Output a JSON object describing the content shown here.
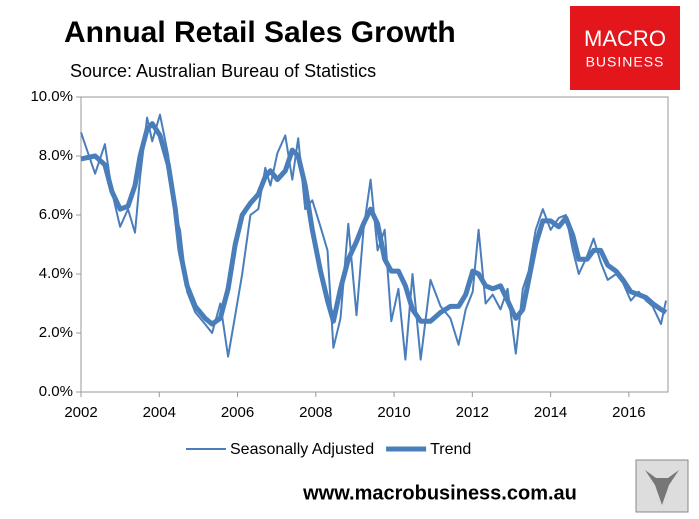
{
  "chart_data": {
    "type": "line",
    "title": "Annual Retail Sales Growth",
    "subtitle": "Source: Australian Bureau of Statistics",
    "logo": [
      "MACRO",
      "BUSINESS"
    ],
    "footer": "www.macrobusiness.com.au",
    "x": [
      2002.0,
      2002.36,
      2002.61,
      2002.79,
      2003.0,
      2003.2,
      2003.38,
      2003.51,
      2003.69,
      2003.82,
      2004.02,
      2004.23,
      2004.41,
      2004.53,
      2004.71,
      2004.92,
      2005.17,
      2005.35,
      2005.56,
      2005.76,
      2005.94,
      2006.12,
      2006.33,
      2006.53,
      2006.71,
      2006.84,
      2007.02,
      2007.22,
      2007.4,
      2007.55,
      2007.73,
      2007.91,
      2008.12,
      2008.3,
      2008.45,
      2008.63,
      2008.83,
      2009.04,
      2009.22,
      2009.4,
      2009.58,
      2009.76,
      2009.93,
      2010.11,
      2010.29,
      2010.47,
      2010.68,
      2010.93,
      2011.19,
      2011.44,
      2011.65,
      2011.83,
      2012.01,
      2012.16,
      2012.34,
      2012.52,
      2012.72,
      2012.9,
      2013.11,
      2013.29,
      2013.44,
      2013.62,
      2013.8,
      2014.0,
      2014.21,
      2014.39,
      2014.57,
      2014.72,
      2014.93,
      2015.1,
      2015.28,
      2015.46,
      2015.67,
      2015.85,
      2016.05,
      2016.25,
      2016.44,
      2016.61,
      2016.82,
      2016.95
    ],
    "series": [
      {
        "name": "Seasonally Adjusted",
        "color": "#4a7ebb",
        "width": 2,
        "values": [
          8.8,
          7.4,
          8.4,
          6.8,
          5.6,
          6.2,
          5.4,
          7.3,
          9.3,
          8.5,
          9.4,
          8.0,
          6.0,
          5.5,
          3.4,
          2.7,
          2.3,
          2.0,
          3.0,
          1.2,
          2.6,
          4.0,
          6.0,
          6.2,
          7.6,
          7.0,
          8.1,
          8.7,
          7.2,
          8.6,
          6.2,
          6.5,
          5.6,
          4.8,
          1.5,
          2.5,
          5.7,
          2.6,
          5.5,
          7.2,
          4.8,
          5.5,
          2.4,
          3.5,
          1.1,
          4.0,
          1.1,
          3.8,
          2.9,
          2.5,
          1.6,
          2.8,
          3.4,
          5.5,
          3.0,
          3.3,
          2.8,
          3.5,
          1.3,
          3.5,
          4.1,
          5.5,
          6.2,
          5.5,
          5.9,
          6.0,
          4.8,
          4.0,
          4.6,
          5.2,
          4.4,
          3.8,
          4.0,
          3.7,
          3.1,
          3.4,
          3.1,
          2.9,
          2.3,
          3.1
        ]
      },
      {
        "name": "Trend",
        "color": "#4a7ebb",
        "width": 5,
        "values": [
          7.9,
          8.0,
          7.7,
          6.8,
          6.2,
          6.3,
          7.0,
          8.0,
          8.9,
          9.1,
          8.7,
          7.7,
          6.2,
          4.8,
          3.6,
          2.9,
          2.5,
          2.3,
          2.5,
          3.5,
          5.0,
          6.0,
          6.4,
          6.7,
          7.3,
          7.5,
          7.2,
          7.5,
          8.2,
          8.0,
          7.0,
          5.5,
          4.1,
          3.1,
          2.4,
          3.5,
          4.5,
          5.1,
          5.7,
          6.2,
          5.7,
          4.5,
          4.1,
          4.1,
          3.6,
          2.8,
          2.4,
          2.4,
          2.7,
          2.9,
          2.9,
          3.3,
          4.1,
          4.0,
          3.6,
          3.5,
          3.6,
          3.1,
          2.5,
          2.8,
          3.8,
          5.0,
          5.8,
          5.8,
          5.6,
          5.9,
          5.3,
          4.5,
          4.5,
          4.8,
          4.8,
          4.3,
          4.1,
          3.8,
          3.4,
          3.3,
          3.2,
          3.0,
          2.8,
          2.7
        ]
      }
    ],
    "xlim": [
      2002,
      2017
    ],
    "xticks": [
      2002,
      2004,
      2006,
      2008,
      2010,
      2012,
      2014,
      2016
    ],
    "ylim": [
      0,
      10
    ],
    "yticks": [
      {
        "value": 0,
        "label": "0.0%"
      },
      {
        "value": 2,
        "label": "2.0%"
      },
      {
        "value": 4,
        "label": "4.0%"
      },
      {
        "value": 6,
        "label": "6.0%"
      },
      {
        "value": 8,
        "label": "8.0%"
      },
      {
        "value": 10,
        "label": "10.0%"
      }
    ],
    "grid": false,
    "legend": "bottom"
  }
}
